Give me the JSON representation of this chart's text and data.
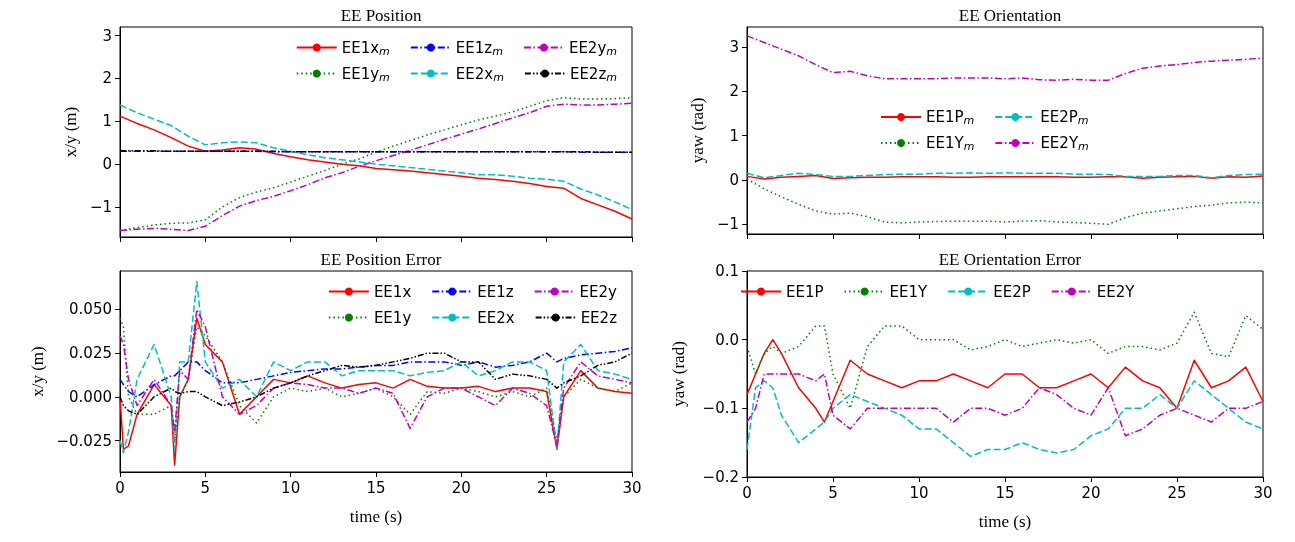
{
  "chart_data": [
    {
      "type": "line",
      "title": "EE Position",
      "ylabel": "x/y (m)",
      "xlim": [
        0,
        30
      ],
      "xticks": [
        0,
        5,
        10,
        15,
        20,
        25,
        30
      ],
      "ylim": [
        -1.7,
        3.2
      ],
      "yticks": [
        {
          "value": -1,
          "label": "−1"
        },
        0,
        1,
        2,
        3
      ],
      "tick_labels": "y",
      "legend": "top right",
      "x": [
        0,
        1,
        2,
        3,
        4,
        5,
        6,
        7,
        8,
        9,
        10,
        11,
        12,
        13,
        14,
        15,
        16,
        17,
        18,
        19,
        20,
        21,
        22,
        23,
        24,
        25,
        26,
        27,
        28,
        29,
        30
      ],
      "series": [
        {
          "name": "EE1x$_{m}$",
          "color": "#ff0000",
          "line_style": "solid",
          "values": [
            1.12,
            0.95,
            0.8,
            0.62,
            0.42,
            0.3,
            0.33,
            0.38,
            0.35,
            0.25,
            0.17,
            0.1,
            0.05,
            0.0,
            -0.04,
            -0.1,
            -0.13,
            -0.16,
            -0.2,
            -0.24,
            -0.28,
            -0.33,
            -0.36,
            -0.4,
            -0.45,
            -0.52,
            -0.56,
            -0.8,
            -0.95,
            -1.1,
            -1.28
          ]
        },
        {
          "name": "EE1y$_{m}$",
          "color": "#008000",
          "line_style": "dotted",
          "values": [
            -1.55,
            -1.48,
            -1.42,
            -1.38,
            -1.37,
            -1.3,
            -1.0,
            -0.78,
            -0.65,
            -0.55,
            -0.42,
            -0.28,
            -0.15,
            0.0,
            0.12,
            0.28,
            0.42,
            0.55,
            0.68,
            0.8,
            0.92,
            1.03,
            1.12,
            1.22,
            1.35,
            1.48,
            1.55,
            1.52,
            1.52,
            1.53,
            1.55
          ]
        },
        {
          "name": "EE1z$_{m}$",
          "color": "#0000ff",
          "line_style": "dashdot",
          "values": [
            0.3,
            0.3,
            0.3,
            0.3,
            0.3,
            0.3,
            0.3,
            0.3,
            0.3,
            0.29,
            0.29,
            0.29,
            0.29,
            0.29,
            0.29,
            0.29,
            0.29,
            0.29,
            0.29,
            0.29,
            0.29,
            0.29,
            0.29,
            0.29,
            0.29,
            0.29,
            0.29,
            0.28,
            0.28,
            0.28,
            0.28
          ]
        },
        {
          "name": "EE2x$_{m}$",
          "color": "#00bfbf",
          "line_style": "dashed",
          "values": [
            1.38,
            1.2,
            1.05,
            0.9,
            0.65,
            0.45,
            0.5,
            0.52,
            0.5,
            0.38,
            0.3,
            0.22,
            0.15,
            0.1,
            0.05,
            0.0,
            -0.04,
            -0.08,
            -0.12,
            -0.16,
            -0.2,
            -0.25,
            -0.25,
            -0.28,
            -0.33,
            -0.35,
            -0.4,
            -0.58,
            -0.72,
            -0.88,
            -1.06
          ]
        },
        {
          "name": "EE2y$_{m}$",
          "color": "#bf00bf",
          "line_style": "dashdot",
          "values": [
            -1.55,
            -1.52,
            -1.5,
            -1.52,
            -1.55,
            -1.45,
            -1.2,
            -0.98,
            -0.85,
            -0.75,
            -0.62,
            -0.48,
            -0.32,
            -0.2,
            -0.05,
            0.08,
            0.2,
            0.32,
            0.45,
            0.58,
            0.7,
            0.82,
            0.95,
            1.08,
            1.2,
            1.35,
            1.4,
            1.38,
            1.38,
            1.4,
            1.42
          ]
        },
        {
          "name": "EE2z$_{m}$",
          "color": "#000000",
          "line_style": "dashdotdot",
          "values": [
            0.31,
            0.31,
            0.31,
            0.3,
            0.3,
            0.3,
            0.3,
            0.3,
            0.3,
            0.3,
            0.29,
            0.29,
            0.29,
            0.29,
            0.29,
            0.29,
            0.29,
            0.29,
            0.29,
            0.29,
            0.29,
            0.29,
            0.29,
            0.29,
            0.29,
            0.29,
            0.29,
            0.29,
            0.28,
            0.28,
            0.28
          ]
        }
      ]
    },
    {
      "type": "line",
      "title": "EE Orientation",
      "ylabel": "yaw (rad)",
      "xlim": [
        0,
        30
      ],
      "xticks": [
        0,
        5,
        10,
        15,
        20,
        25,
        30
      ],
      "ylim": [
        -1.22,
        3.45
      ],
      "yticks": [
        {
          "value": -1,
          "label": "−1"
        },
        0,
        1,
        2,
        3
      ],
      "tick_labels": "y",
      "legend": "center",
      "x": [
        0,
        1,
        2,
        3,
        4,
        5,
        6,
        7,
        8,
        9,
        10,
        11,
        12,
        13,
        14,
        15,
        16,
        17,
        18,
        19,
        20,
        21,
        22,
        23,
        24,
        25,
        26,
        27,
        28,
        29,
        30
      ],
      "series": [
        {
          "name": "EE1P$_{m}$",
          "color": "#ff0000",
          "line_style": "solid",
          "values": [
            0.08,
            0.02,
            0.06,
            0.08,
            0.1,
            0.03,
            0.05,
            0.06,
            0.06,
            0.07,
            0.07,
            0.07,
            0.06,
            0.06,
            0.07,
            0.07,
            0.07,
            0.07,
            0.07,
            0.06,
            0.06,
            0.07,
            0.07,
            0.04,
            0.06,
            0.07,
            0.08,
            0.04,
            0.07,
            0.06,
            0.09
          ]
        },
        {
          "name": "EE1Y$_{m}$",
          "color": "#008000",
          "line_style": "dotted",
          "values": [
            0.02,
            -0.2,
            -0.38,
            -0.55,
            -0.7,
            -0.77,
            -0.75,
            -0.83,
            -0.95,
            -0.97,
            -0.95,
            -0.94,
            -0.93,
            -0.93,
            -0.93,
            -0.95,
            -0.93,
            -0.92,
            -0.95,
            -0.96,
            -0.98,
            -1.0,
            -0.85,
            -0.75,
            -0.7,
            -0.65,
            -0.6,
            -0.57,
            -0.52,
            -0.5,
            -0.52
          ]
        },
        {
          "name": "EE2P$_{m}$",
          "color": "#00bfbf",
          "line_style": "dashed",
          "values": [
            0.15,
            0.05,
            0.1,
            0.15,
            0.12,
            0.08,
            0.08,
            0.1,
            0.12,
            0.13,
            0.13,
            0.15,
            0.15,
            0.16,
            0.15,
            0.16,
            0.15,
            0.15,
            0.15,
            0.13,
            0.13,
            0.12,
            0.08,
            0.08,
            0.08,
            0.1,
            0.1,
            0.05,
            0.1,
            0.12,
            0.13
          ]
        },
        {
          "name": "EE2Y$_{m}$",
          "color": "#bf00bf",
          "line_style": "dashdot",
          "values": [
            3.25,
            3.1,
            2.95,
            2.8,
            2.6,
            2.42,
            2.45,
            2.35,
            2.28,
            2.28,
            2.28,
            2.28,
            2.3,
            2.3,
            2.3,
            2.28,
            2.3,
            2.26,
            2.25,
            2.27,
            2.25,
            2.25,
            2.4,
            2.52,
            2.57,
            2.6,
            2.65,
            2.68,
            2.7,
            2.72,
            2.75
          ]
        }
      ]
    },
    {
      "type": "line",
      "title": "EE Position Error",
      "xlabel": "time (s)",
      "ylabel": "x/y (m)",
      "xlim": [
        0,
        30
      ],
      "xticks": [
        0,
        5,
        10,
        15,
        20,
        25,
        30
      ],
      "ylim": [
        -0.043,
        0.072
      ],
      "yticks": [
        {
          "value": -0.025,
          "label": "−0.025"
        },
        {
          "value": 0,
          "label": "0.000"
        },
        0.025,
        {
          "value": 0.05,
          "label": "0.050"
        }
      ],
      "legend": "top right",
      "x": [
        0,
        0.2,
        0.5,
        1,
        2,
        3,
        3.2,
        3.5,
        4,
        4.5,
        5,
        6,
        7,
        8,
        9,
        10,
        11,
        12,
        13,
        14,
        15,
        16,
        17,
        18,
        19,
        20,
        21,
        22,
        23,
        24,
        25,
        25.6,
        26,
        27,
        28,
        29,
        30
      ],
      "series": [
        {
          "name": "EE1x",
          "color": "#ff0000",
          "line_style": "solid",
          "values": [
            0.0,
            -0.03,
            -0.028,
            -0.01,
            0.007,
            -0.005,
            -0.039,
            0.0,
            0.01,
            0.045,
            0.03,
            0.02,
            -0.01,
            0.0,
            0.01,
            0.008,
            0.012,
            0.008,
            0.005,
            0.007,
            0.008,
            0.005,
            0.01,
            0.006,
            0.005,
            0.005,
            0.006,
            0.003,
            0.005,
            0.005,
            0.003,
            -0.03,
            0.0,
            0.015,
            0.005,
            0.003,
            0.002
          ]
        },
        {
          "name": "EE1y",
          "color": "#008000",
          "line_style": "dotted",
          "values": [
            0.045,
            0.04,
            0.0,
            -0.01,
            -0.01,
            -0.005,
            -0.025,
            0.0,
            0.01,
            0.04,
            0.035,
            0.02,
            -0.005,
            -0.015,
            0.0,
            0.005,
            0.003,
            0.005,
            0.0,
            0.002,
            0.005,
            0.0,
            -0.01,
            0.003,
            0.002,
            0.005,
            0.003,
            0.0,
            0.003,
            0.0,
            0.005,
            -0.025,
            0.0,
            0.01,
            0.005,
            0.003,
            0.008
          ]
        },
        {
          "name": "EE1z",
          "color": "#0000ff",
          "line_style": "dashdot",
          "values": [
            0.01,
            0.007,
            0.003,
            0.0,
            0.007,
            0.012,
            0.012,
            0.015,
            0.02,
            0.02,
            0.015,
            0.008,
            0.008,
            0.01,
            0.012,
            0.014,
            0.015,
            0.016,
            0.016,
            0.017,
            0.018,
            0.018,
            0.02,
            0.02,
            0.02,
            0.018,
            0.02,
            0.017,
            0.018,
            0.02,
            0.025,
            0.02,
            0.022,
            0.024,
            0.025,
            0.026,
            0.028
          ]
        },
        {
          "name": "EE2x",
          "color": "#00bfbf",
          "line_style": "dashed",
          "values": [
            -0.025,
            -0.032,
            -0.02,
            0.01,
            0.03,
            0.0,
            -0.03,
            0.02,
            0.02,
            0.066,
            0.02,
            0.005,
            0.01,
            0.0,
            0.02,
            0.015,
            0.02,
            0.02,
            0.012,
            0.015,
            0.015,
            0.015,
            0.012,
            0.014,
            0.015,
            0.02,
            0.012,
            0.015,
            0.02,
            0.02,
            0.015,
            -0.03,
            0.02,
            0.03,
            0.015,
            0.013,
            0.01
          ]
        },
        {
          "name": "EE2y",
          "color": "#bf00bf",
          "line_style": "dashdot",
          "values": [
            0.035,
            0.03,
            0.01,
            -0.005,
            0.01,
            -0.005,
            -0.02,
            0.015,
            0.01,
            0.05,
            0.04,
            0.0,
            -0.01,
            -0.005,
            0.005,
            0.008,
            0.007,
            0.005,
            0.005,
            0.002,
            0.005,
            0.002,
            -0.018,
            0.0,
            0.005,
            0.005,
            0.0,
            -0.005,
            0.005,
            0.002,
            -0.005,
            -0.028,
            0.005,
            0.02,
            0.012,
            0.01,
            0.008
          ]
        },
        {
          "name": "EE2z",
          "color": "#000000",
          "line_style": "dashdotdot",
          "values": [
            0.0,
            -0.005,
            -0.008,
            -0.01,
            0.0,
            0.005,
            0.003,
            0.002,
            0.003,
            0.003,
            0.0,
            -0.005,
            -0.003,
            0.0,
            0.005,
            0.008,
            0.012,
            0.015,
            0.018,
            0.017,
            0.018,
            0.02,
            0.022,
            0.025,
            0.025,
            0.02,
            0.02,
            0.01,
            0.013,
            0.012,
            0.01,
            0.005,
            0.008,
            0.012,
            0.018,
            0.02,
            0.025
          ]
        }
      ]
    },
    {
      "type": "line",
      "title": "EE Orientation Error",
      "xlabel": "time (s)",
      "ylabel": "yaw (rad)",
      "xlim": [
        0,
        30
      ],
      "xticks": [
        0,
        5,
        10,
        15,
        20,
        25,
        30
      ],
      "ylim": [
        -0.2,
        0.1
      ],
      "yticks": [
        {
          "value": -0.2,
          "label": "−0.2"
        },
        {
          "value": -0.1,
          "label": "−0.1"
        },
        {
          "value": 0,
          "label": "0.0"
        },
        0.1
      ],
      "legend": "top",
      "x": [
        0,
        0.5,
        1,
        1.5,
        2,
        3,
        4,
        4.5,
        5,
        6,
        7,
        8,
        9,
        10,
        11,
        12,
        13,
        14,
        15,
        16,
        17,
        18,
        19,
        20,
        21,
        22,
        23,
        24,
        25,
        26,
        27,
        28,
        29,
        30
      ],
      "series": [
        {
          "name": "EE1P",
          "color": "#ff0000",
          "line_style": "solid",
          "values": [
            -0.08,
            -0.05,
            -0.02,
            0.0,
            -0.02,
            -0.07,
            -0.1,
            -0.12,
            -0.09,
            -0.03,
            -0.05,
            -0.06,
            -0.07,
            -0.06,
            -0.06,
            -0.05,
            -0.06,
            -0.07,
            -0.05,
            -0.05,
            -0.07,
            -0.07,
            -0.06,
            -0.05,
            -0.07,
            -0.04,
            -0.06,
            -0.07,
            -0.1,
            -0.03,
            -0.07,
            -0.06,
            -0.04,
            -0.09
          ]
        },
        {
          "name": "EE1Y",
          "color": "#008000",
          "line_style": "dotted",
          "values": [
            -0.01,
            -0.05,
            -0.02,
            -0.01,
            -0.02,
            -0.01,
            0.02,
            0.02,
            -0.05,
            -0.1,
            -0.01,
            0.02,
            0.02,
            0.0,
            0.0,
            0.0,
            -0.015,
            -0.01,
            0.0,
            -0.01,
            -0.005,
            0.0,
            -0.005,
            0.0,
            -0.02,
            -0.01,
            -0.01,
            -0.015,
            -0.005,
            0.04,
            -0.02,
            -0.025,
            0.035,
            0.015
          ]
        },
        {
          "name": "EE2P",
          "color": "#00bfbf",
          "line_style": "dashed",
          "values": [
            -0.16,
            -0.07,
            -0.06,
            -0.07,
            -0.11,
            -0.15,
            -0.13,
            -0.12,
            -0.1,
            -0.08,
            -0.09,
            -0.1,
            -0.11,
            -0.13,
            -0.13,
            -0.15,
            -0.17,
            -0.16,
            -0.16,
            -0.15,
            -0.16,
            -0.165,
            -0.16,
            -0.14,
            -0.13,
            -0.1,
            -0.1,
            -0.08,
            -0.1,
            -0.06,
            -0.08,
            -0.1,
            -0.12,
            -0.13
          ]
        },
        {
          "name": "EE2Y",
          "color": "#bf00bf",
          "line_style": "dashdot",
          "values": [
            -0.12,
            -0.1,
            -0.05,
            -0.05,
            -0.05,
            -0.05,
            -0.06,
            -0.05,
            -0.11,
            -0.13,
            -0.1,
            -0.1,
            -0.1,
            -0.1,
            -0.1,
            -0.12,
            -0.1,
            -0.1,
            -0.11,
            -0.1,
            -0.07,
            -0.08,
            -0.1,
            -0.11,
            -0.07,
            -0.14,
            -0.13,
            -0.11,
            -0.1,
            -0.11,
            -0.12,
            -0.1,
            -0.1,
            -0.09
          ]
        }
      ]
    }
  ]
}
